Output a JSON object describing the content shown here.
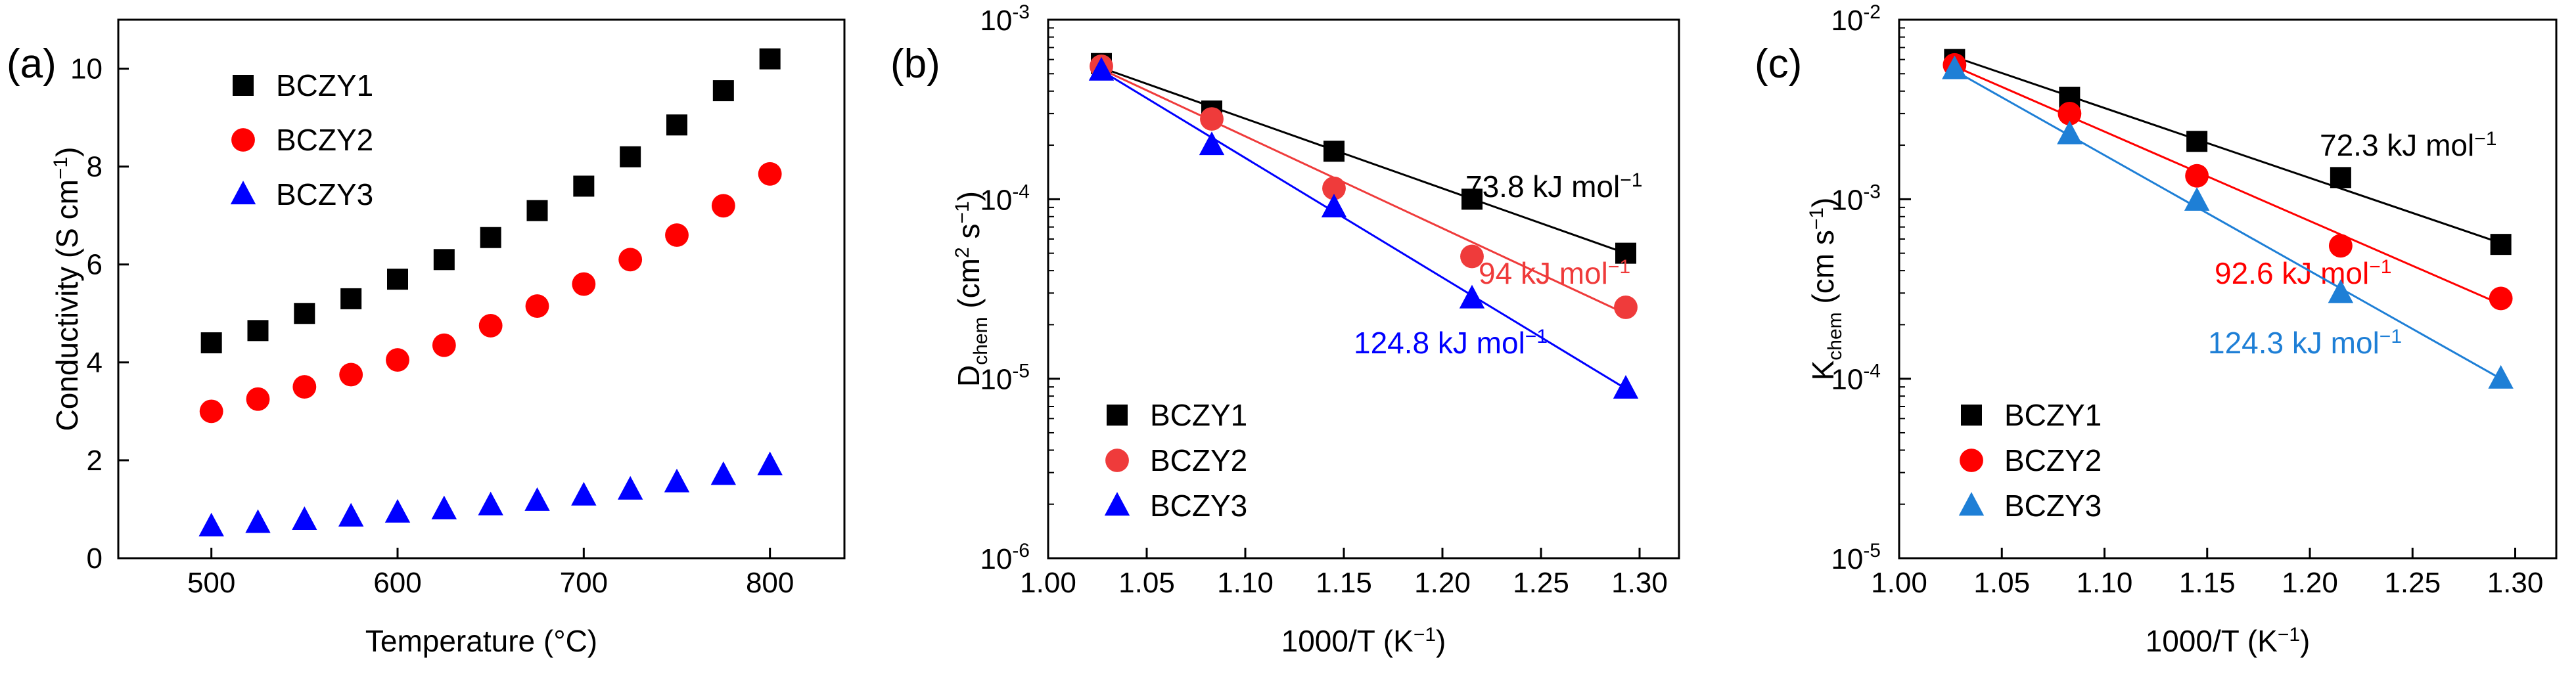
{
  "chart_data": [
    {
      "type": "scatter",
      "panel_label": "(a)",
      "xlabel": "Temperature (°C)",
      "ylabel": "Conductivity (S cm",
      "ylabel_sup": "−1",
      "ylabel_end": ")",
      "xlim": [
        450,
        840
      ],
      "ylim": [
        0,
        11
      ],
      "xticks": [
        500,
        600,
        700,
        800
      ],
      "yticks": [
        0,
        2,
        4,
        6,
        8,
        10
      ],
      "legend_position": "top-left",
      "x": [
        500,
        525,
        550,
        575,
        600,
        625,
        650,
        675,
        700,
        725,
        750,
        775,
        800
      ],
      "series": [
        {
          "name": "BCZY1",
          "marker": "square",
          "color": "#000000",
          "values": [
            4.4,
            4.65,
            5.0,
            5.3,
            5.7,
            6.1,
            6.55,
            7.1,
            7.6,
            8.2,
            8.85,
            9.55,
            10.2
          ]
        },
        {
          "name": "BCZY2",
          "marker": "circle",
          "color": "#ff0000",
          "values": [
            3.0,
            3.25,
            3.5,
            3.75,
            4.05,
            4.35,
            4.75,
            5.15,
            5.6,
            6.1,
            6.6,
            7.2,
            7.85
          ]
        },
        {
          "name": "BCZY3",
          "marker": "triangle",
          "color": "#0000ff",
          "values": [
            0.65,
            0.72,
            0.78,
            0.85,
            0.93,
            1.0,
            1.08,
            1.17,
            1.28,
            1.4,
            1.55,
            1.7,
            1.9
          ]
        }
      ]
    },
    {
      "type": "scatter",
      "panel_label": "(b)",
      "xlabel": "1000/T (K",
      "xlabel_sup": "−1",
      "xlabel_end": ")",
      "ylabel_main": "D",
      "ylabel_sub": "chem",
      "ylabel_mid": " (cm",
      "ylabel_sup1": "2",
      "ylabel_mid2": " s",
      "ylabel_sup2": "−1",
      "ylabel_end": ")",
      "yscale": "log",
      "xlim": [
        1.0,
        1.32
      ],
      "ylim_exp": [
        -6,
        -3
      ],
      "xticks": [
        "1.00",
        "1.05",
        "1.10",
        "1.15",
        "1.20",
        "1.25",
        "1.30"
      ],
      "yticks_exp": [
        "-6",
        "-5",
        "-4",
        "-3"
      ],
      "legend_position": "bottom-left",
      "x": [
        1.027,
        1.083,
        1.145,
        1.215,
        1.293
      ],
      "series": [
        {
          "name": "BCZY1",
          "marker": "square",
          "color": "#000000",
          "values": [
            0.00057,
            0.00031,
            0.000185,
            0.0001,
            5e-05
          ],
          "fit": [
            0.00054,
            5e-05
          ],
          "annotation": "73.8 kJ mol",
          "ann_sup": "−1"
        },
        {
          "name": "BCZY2",
          "marker": "circle",
          "color": "#ef3b3b",
          "values": [
            0.00055,
            0.00028,
            0.000115,
            4.8e-05,
            2.5e-05
          ],
          "fit": [
            0.00053,
            2.3e-05
          ],
          "annotation": "94 kJ mol",
          "ann_sup": "−1"
        },
        {
          "name": "BCZY3",
          "marker": "triangle",
          "color": "#0000ff",
          "values": [
            0.00052,
            0.0002,
            9e-05,
            2.8e-05,
            8.8e-06
          ],
          "fit": [
            0.00052,
            8.8e-06
          ],
          "annotation": "124.8 kJ mol",
          "ann_sup": "−1"
        }
      ]
    },
    {
      "type": "scatter",
      "panel_label": "(c)",
      "xlabel": "1000/T (K",
      "xlabel_sup": "−1",
      "xlabel_end": ")",
      "ylabel_main": "K",
      "ylabel_sub": "chem",
      "ylabel_mid": " (cm s",
      "ylabel_sup": "−1",
      "ylabel_end": ")",
      "yscale": "log",
      "xlim": [
        1.0,
        1.32
      ],
      "ylim_exp": [
        -5,
        -2
      ],
      "xticks": [
        "1.00",
        "1.05",
        "1.10",
        "1.15",
        "1.20",
        "1.25",
        "1.30"
      ],
      "yticks_exp": [
        "-5",
        "-4",
        "-3",
        "-2"
      ],
      "legend_position": "bottom-left",
      "x": [
        1.027,
        1.083,
        1.145,
        1.215,
        1.293
      ],
      "series": [
        {
          "name": "BCZY1",
          "marker": "square",
          "color": "#000000",
          "values": [
            0.006,
            0.0037,
            0.0021,
            0.00132,
            0.00056
          ],
          "fit": [
            0.0062,
            0.00057
          ],
          "annotation": "72.3 kJ mol",
          "ann_sup": "−1"
        },
        {
          "name": "BCZY2",
          "marker": "circle",
          "color": "#ff0000",
          "values": [
            0.0056,
            0.003,
            0.00135,
            0.00055,
            0.00028
          ],
          "fit": [
            0.0055,
            0.00026
          ],
          "annotation": "92.6 kJ mol",
          "ann_sup": "−1"
        },
        {
          "name": "BCZY3",
          "marker": "triangle",
          "color": "#1e7fd6",
          "values": [
            0.0053,
            0.0023,
            0.00098,
            0.0003,
            0.0001
          ],
          "fit": [
            0.0052,
            0.0001
          ],
          "annotation": "124.3 kJ mol",
          "ann_sup": "−1"
        }
      ]
    }
  ]
}
